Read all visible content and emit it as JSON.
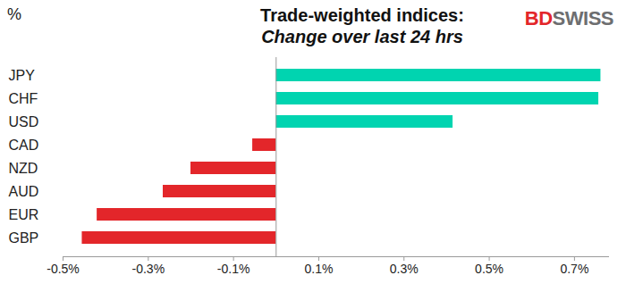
{
  "chart_data": {
    "type": "bar",
    "orientation": "horizontal",
    "title": "Trade-weighted indices:",
    "subtitle": "Change over last 24 hrs",
    "xlabel": "%",
    "logo": "BDSWISS",
    "categories": [
      "JPY",
      "CHF",
      "USD",
      "CAD",
      "NZD",
      "AUD",
      "EUR",
      "GBP"
    ],
    "values": [
      0.762,
      0.757,
      0.415,
      -0.055,
      -0.2,
      -0.265,
      -0.42,
      -0.455
    ],
    "colors": [
      "#00d4b0",
      "#00d4b0",
      "#00d4b0",
      "#e3262a",
      "#e3262a",
      "#e3262a",
      "#e3262a",
      "#e3262a"
    ],
    "xlim": [
      -0.5,
      0.78
    ],
    "xticks": [
      {
        "value": -0.5,
        "label": "-0.5%"
      },
      {
        "value": -0.3,
        "label": "-0.3%"
      },
      {
        "value": -0.1,
        "label": "-0.1%"
      },
      {
        "value": 0.1,
        "label": "0.1%"
      },
      {
        "value": 0.3,
        "label": "0.3%"
      },
      {
        "value": 0.5,
        "label": "0.5%"
      },
      {
        "value": 0.7,
        "label": "0.7%"
      }
    ],
    "grid": false
  }
}
